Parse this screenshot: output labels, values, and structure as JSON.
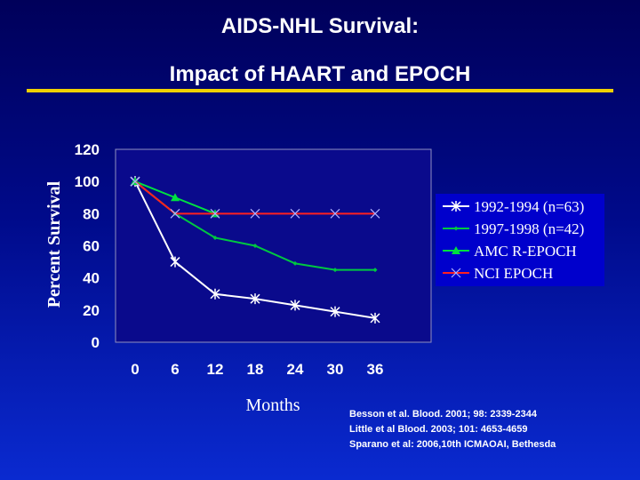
{
  "slide": {
    "title": "AIDS-NHL Survival:",
    "subtitle": "Impact of HAART and EPOCH",
    "citations": [
      "Besson et al. Blood. 2001; 98: 2339-2344",
      "Little et al Blood. 2003; 101: 4653-4659",
      "Sparano et al: 2006,10th ICMAOAI, Bethesda"
    ]
  },
  "colors": {
    "title": "#ffffff",
    "rule": "#f0d000",
    "plot_bg": "#0a0a8c",
    "legend_bg": "#0000cc",
    "axis_text": "#ffffff"
  },
  "chart_data": {
    "type": "line",
    "title": "",
    "xlabel": "Months",
    "ylabel": "Percent Survival",
    "categories": [
      "0",
      "6",
      "12",
      "18",
      "24",
      "30",
      "36"
    ],
    "ylim": [
      0,
      120
    ],
    "yticks": [
      "0",
      "20",
      "40",
      "60",
      "80",
      "100",
      "120"
    ],
    "grid": false,
    "legend_position": "right",
    "series": [
      {
        "name": "1992-1994 (n=63)",
        "color": "#ffffff",
        "marker": "asterisk",
        "values": [
          100,
          50,
          30,
          27,
          23,
          19,
          15
        ]
      },
      {
        "name": "1997-1998 (n=42)",
        "color": "#00c840",
        "marker": "diamond",
        "values": [
          100,
          80,
          65,
          60,
          49,
          45,
          45
        ]
      },
      {
        "name": "AMC  R-EPOCH",
        "color": "#00e040",
        "marker": "triangle",
        "values": [
          100,
          90,
          80,
          null,
          null,
          null,
          null
        ]
      },
      {
        "name": "NCI  EPOCH",
        "color": "#ff2020",
        "marker": "x",
        "values": [
          100,
          80,
          80,
          80,
          80,
          80,
          80
        ]
      }
    ]
  }
}
